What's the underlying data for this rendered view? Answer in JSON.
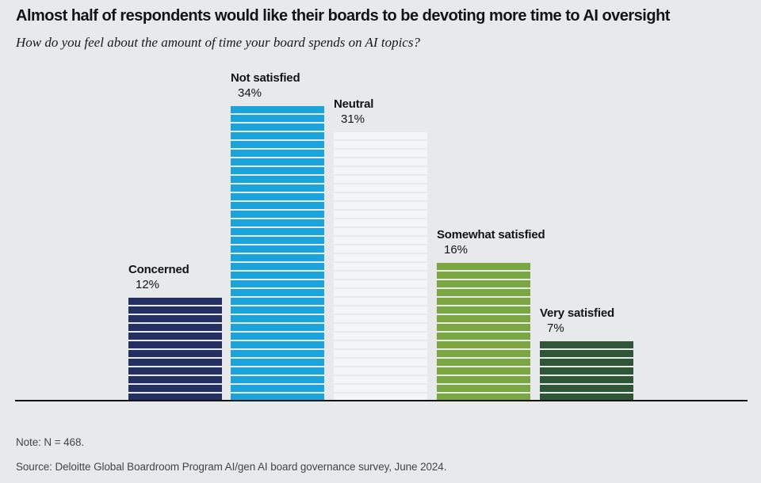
{
  "title": "Almost half of respondents would like their boards to be devoting more time to AI oversight",
  "subtitle": "How do you feel about the amount of time your board spends on AI topics?",
  "note": "Note: N = 468.",
  "source": "Source: Deloitte Global Boardroom Program AI/gen AI board governance survey, June 2024.",
  "chart_data": {
    "type": "bar",
    "categories": [
      "Concerned",
      "Not satisfied",
      "Neutral",
      "Somewhat satisfied",
      "Very satisfied"
    ],
    "values": [
      12,
      34,
      31,
      16,
      7
    ],
    "value_labels": [
      "12%",
      "34%",
      "31%",
      "16%",
      "7%"
    ],
    "unit": "%",
    "title": "Almost half of respondents would like their boards to be devoting more time to AI oversight",
    "xlabel": "",
    "ylabel": "",
    "ylim": [
      0,
      34
    ],
    "grid": false,
    "legend": "none",
    "style": "each horizontal stripe in a bar represents 1 percentage point",
    "bar_colors": [
      "#242f62",
      "#1ba3dc",
      "#f4f5f7",
      "#7ba742",
      "#2e5637"
    ],
    "background_color": "#e8e9eb",
    "axis_line_color": "#141414"
  }
}
